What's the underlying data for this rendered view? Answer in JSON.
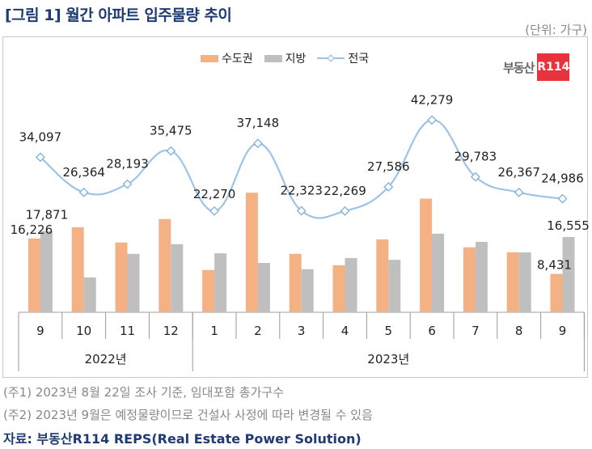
{
  "title": "[그림 1] 월간 아파트 입주물량 추이",
  "unit_label": "(단위: 가구)",
  "logo": {
    "text": "부동산",
    "badge": "R114"
  },
  "notes": [
    "(주1) 2023년 8월 22일 조사 기준, 임대포함 총가구수",
    "(주2) 2023년 9월은 예정물량이므로 건설사 사정에 따라 변경될 수 있음"
  ],
  "source": "자료: 부동산R114 REPS(Real Estate Power Solution)",
  "chart_data": {
    "type": "bar+line",
    "categories": [
      "9",
      "10",
      "11",
      "12",
      "1",
      "2",
      "3",
      "4",
      "5",
      "6",
      "7",
      "8",
      "9"
    ],
    "year_groups": [
      {
        "label": "2022년",
        "span": 4
      },
      {
        "label": "2023년",
        "span": 9
      }
    ],
    "series": [
      {
        "name": "수도권",
        "type": "bar",
        "color": "#f4b183",
        "values": [
          16226,
          18700,
          15350,
          20500,
          9300,
          26300,
          12850,
          10350,
          16050,
          25000,
          14300,
          13200,
          8431
        ],
        "labels": [
          "16,226",
          "",
          "",
          "",
          "",
          "",
          "",
          "",
          "",
          "",
          "",
          "",
          "8,431"
        ]
      },
      {
        "name": "지방",
        "type": "bar",
        "color": "#bfbfbf",
        "values": [
          17871,
          7664,
          12843,
          14975,
          12970,
          10848,
          9473,
          11919,
          11536,
          17279,
          15483,
          13167,
          16555
        ],
        "labels": [
          "17,871",
          "",
          "",
          "",
          "",
          "",
          "",
          "",
          "",
          "",
          "",
          "",
          "16,555"
        ]
      },
      {
        "name": "전국",
        "type": "line",
        "color": "#9dc3e6",
        "values": [
          34097,
          26364,
          28193,
          35475,
          22270,
          37148,
          22323,
          22269,
          27586,
          42279,
          29783,
          26367,
          24986
        ],
        "labels": [
          "34,097",
          "26,364",
          "28,193",
          "35,475",
          "22,270",
          "37,148",
          "22,323",
          "22,269",
          "27,586",
          "42,279",
          "29,783",
          "26,367",
          "24,986"
        ]
      }
    ],
    "ylim": [
      0,
      60000
    ],
    "legend": "top-center",
    "grid": false
  }
}
